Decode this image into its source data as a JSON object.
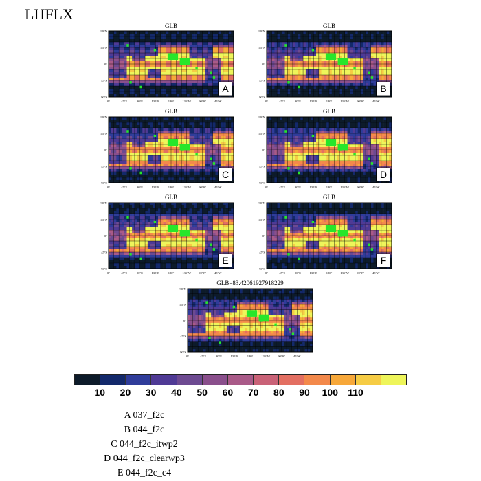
{
  "main_title": "LHFLX",
  "chart_data": {
    "type": "heatmap",
    "variable": "LHFLX",
    "panels": [
      {
        "letter": "A",
        "title": "GLB"
      },
      {
        "letter": "B",
        "title": "GLB"
      },
      {
        "letter": "C",
        "title": "GLB"
      },
      {
        "letter": "D",
        "title": "GLB"
      },
      {
        "letter": "E",
        "title": "GLB"
      },
      {
        "letter": "F",
        "title": "GLB"
      },
      {
        "letter": "",
        "title": "GLB=83.42061927918229"
      }
    ],
    "lat_tick_labels": [
      "90°N",
      "45°N",
      "0°",
      "45°S",
      "90°S"
    ],
    "lon_tick_labels": [
      "0°",
      "45°E",
      "90°E",
      "135°E",
      "180°",
      "135°W",
      "90°W",
      "45°W"
    ],
    "colorbar": {
      "levels": [
        10,
        20,
        30,
        40,
        50,
        60,
        70,
        80,
        90,
        100,
        110
      ],
      "colors": [
        "#0d1b2a",
        "#13296b",
        "#2f3c9a",
        "#4f3a95",
        "#6d4a91",
        "#8a4f8c",
        "#a95a88",
        "#c96277",
        "#e36f62",
        "#f3894b",
        "#f7a83a",
        "#f6cc45",
        "#eef55a"
      ]
    },
    "legend": [
      "A  037_f2c",
      "B  044_f2c",
      "C  044_f2c_itwp2",
      "D  044_f2c_clearwp3",
      "E  044_f2c_c4"
    ]
  }
}
